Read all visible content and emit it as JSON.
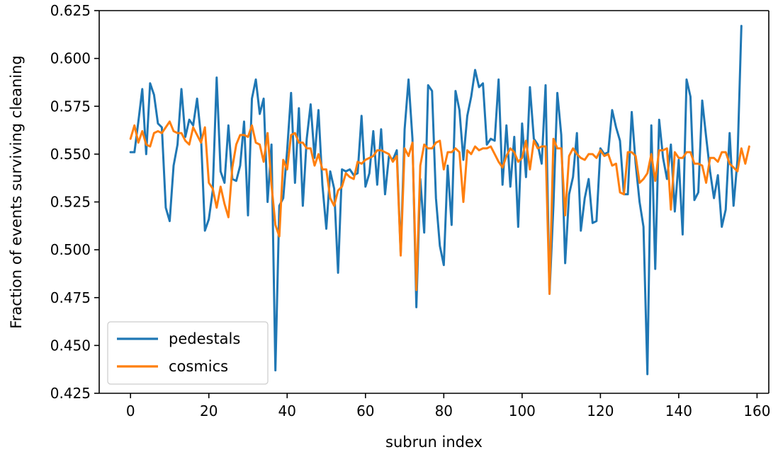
{
  "chart_data": {
    "type": "line",
    "title": "",
    "xlabel": "subrun index",
    "ylabel": "Fraction of events surviving cleaning",
    "xlim": [
      -8,
      163
    ],
    "ylim": [
      0.425,
      0.625
    ],
    "xticks": [
      0,
      20,
      40,
      60,
      80,
      100,
      120,
      140,
      160
    ],
    "yticks": [
      0.425,
      0.45,
      0.475,
      0.5,
      0.525,
      0.55,
      0.575,
      0.6,
      0.625
    ],
    "ytick_labels": [
      "0.425",
      "0.450",
      "0.475",
      "0.500",
      "0.525",
      "0.550",
      "0.575",
      "0.600",
      "0.625"
    ],
    "grid": false,
    "legend_position": "lower-left",
    "series": [
      {
        "name": "pedestals",
        "color": "#1f77b4",
        "values": [
          0.551,
          0.551,
          0.567,
          0.584,
          0.55,
          0.587,
          0.581,
          0.566,
          0.564,
          0.522,
          0.515,
          0.544,
          0.555,
          0.584,
          0.559,
          0.568,
          0.565,
          0.579,
          0.559,
          0.51,
          0.516,
          0.531,
          0.59,
          0.541,
          0.535,
          0.565,
          0.537,
          0.536,
          0.544,
          0.567,
          0.518,
          0.579,
          0.589,
          0.571,
          0.579,
          0.525,
          0.555,
          0.437,
          0.523,
          0.527,
          0.552,
          0.582,
          0.535,
          0.574,
          0.523,
          0.558,
          0.576,
          0.548,
          0.573,
          0.534,
          0.511,
          0.541,
          0.532,
          0.488,
          0.542,
          0.541,
          0.542,
          0.539,
          0.54,
          0.57,
          0.533,
          0.54,
          0.562,
          0.534,
          0.563,
          0.529,
          0.549,
          0.547,
          0.552,
          0.498,
          0.563,
          0.589,
          0.558,
          0.47,
          0.537,
          0.509,
          0.586,
          0.583,
          0.527,
          0.502,
          0.492,
          0.544,
          0.513,
          0.583,
          0.573,
          0.547,
          0.57,
          0.58,
          0.594,
          0.585,
          0.587,
          0.555,
          0.558,
          0.557,
          0.589,
          0.534,
          0.565,
          0.533,
          0.559,
          0.512,
          0.566,
          0.538,
          0.585,
          0.558,
          0.555,
          0.545,
          0.586,
          0.477,
          0.523,
          0.582,
          0.56,
          0.493,
          0.529,
          0.538,
          0.561,
          0.51,
          0.527,
          0.537,
          0.514,
          0.515,
          0.553,
          0.55,
          0.551,
          0.573,
          0.564,
          0.557,
          0.529,
          0.529,
          0.572,
          0.545,
          0.525,
          0.512,
          0.435,
          0.565,
          0.49,
          0.568,
          0.548,
          0.537,
          0.555,
          0.52,
          0.547,
          0.508,
          0.589,
          0.58,
          0.526,
          0.53,
          0.578,
          0.559,
          0.541,
          0.527,
          0.539,
          0.512,
          0.521,
          0.561,
          0.523,
          0.547,
          0.617
        ]
      },
      {
        "name": "cosmics",
        "color": "#ff7f0e",
        "values": [
          0.558,
          0.565,
          0.556,
          0.562,
          0.555,
          0.554,
          0.561,
          0.562,
          0.561,
          0.564,
          0.567,
          0.562,
          0.561,
          0.561,
          0.557,
          0.555,
          0.564,
          0.56,
          0.556,
          0.564,
          0.535,
          0.532,
          0.522,
          0.533,
          0.524,
          0.517,
          0.543,
          0.555,
          0.56,
          0.56,
          0.559,
          0.565,
          0.556,
          0.555,
          0.546,
          0.561,
          0.534,
          0.513,
          0.507,
          0.547,
          0.542,
          0.56,
          0.561,
          0.556,
          0.556,
          0.553,
          0.553,
          0.544,
          0.55,
          0.542,
          0.542,
          0.527,
          0.523,
          0.531,
          0.533,
          0.54,
          0.538,
          0.537,
          0.546,
          0.545,
          0.547,
          0.548,
          0.549,
          0.552,
          0.552,
          0.551,
          0.55,
          0.546,
          0.549,
          0.497,
          0.553,
          0.549,
          0.556,
          0.479,
          0.544,
          0.555,
          0.553,
          0.553,
          0.556,
          0.557,
          0.542,
          0.551,
          0.551,
          0.553,
          0.551,
          0.525,
          0.552,
          0.55,
          0.554,
          0.552,
          0.553,
          0.553,
          0.554,
          0.55,
          0.546,
          0.543,
          0.549,
          0.553,
          0.551,
          0.546,
          0.548,
          0.557,
          0.542,
          0.557,
          0.553,
          0.554,
          0.554,
          0.477,
          0.558,
          0.553,
          0.553,
          0.518,
          0.549,
          0.553,
          0.55,
          0.548,
          0.547,
          0.55,
          0.55,
          0.548,
          0.552,
          0.549,
          0.55,
          0.544,
          0.545,
          0.53,
          0.529,
          0.551,
          0.551,
          0.549,
          0.535,
          0.537,
          0.54,
          0.55,
          0.536,
          0.552,
          0.552,
          0.553,
          0.521,
          0.551,
          0.548,
          0.548,
          0.551,
          0.551,
          0.545,
          0.545,
          0.544,
          0.535,
          0.548,
          0.548,
          0.546,
          0.551,
          0.551,
          0.545,
          0.543,
          0.541,
          0.553,
          0.545,
          0.554
        ]
      }
    ]
  }
}
